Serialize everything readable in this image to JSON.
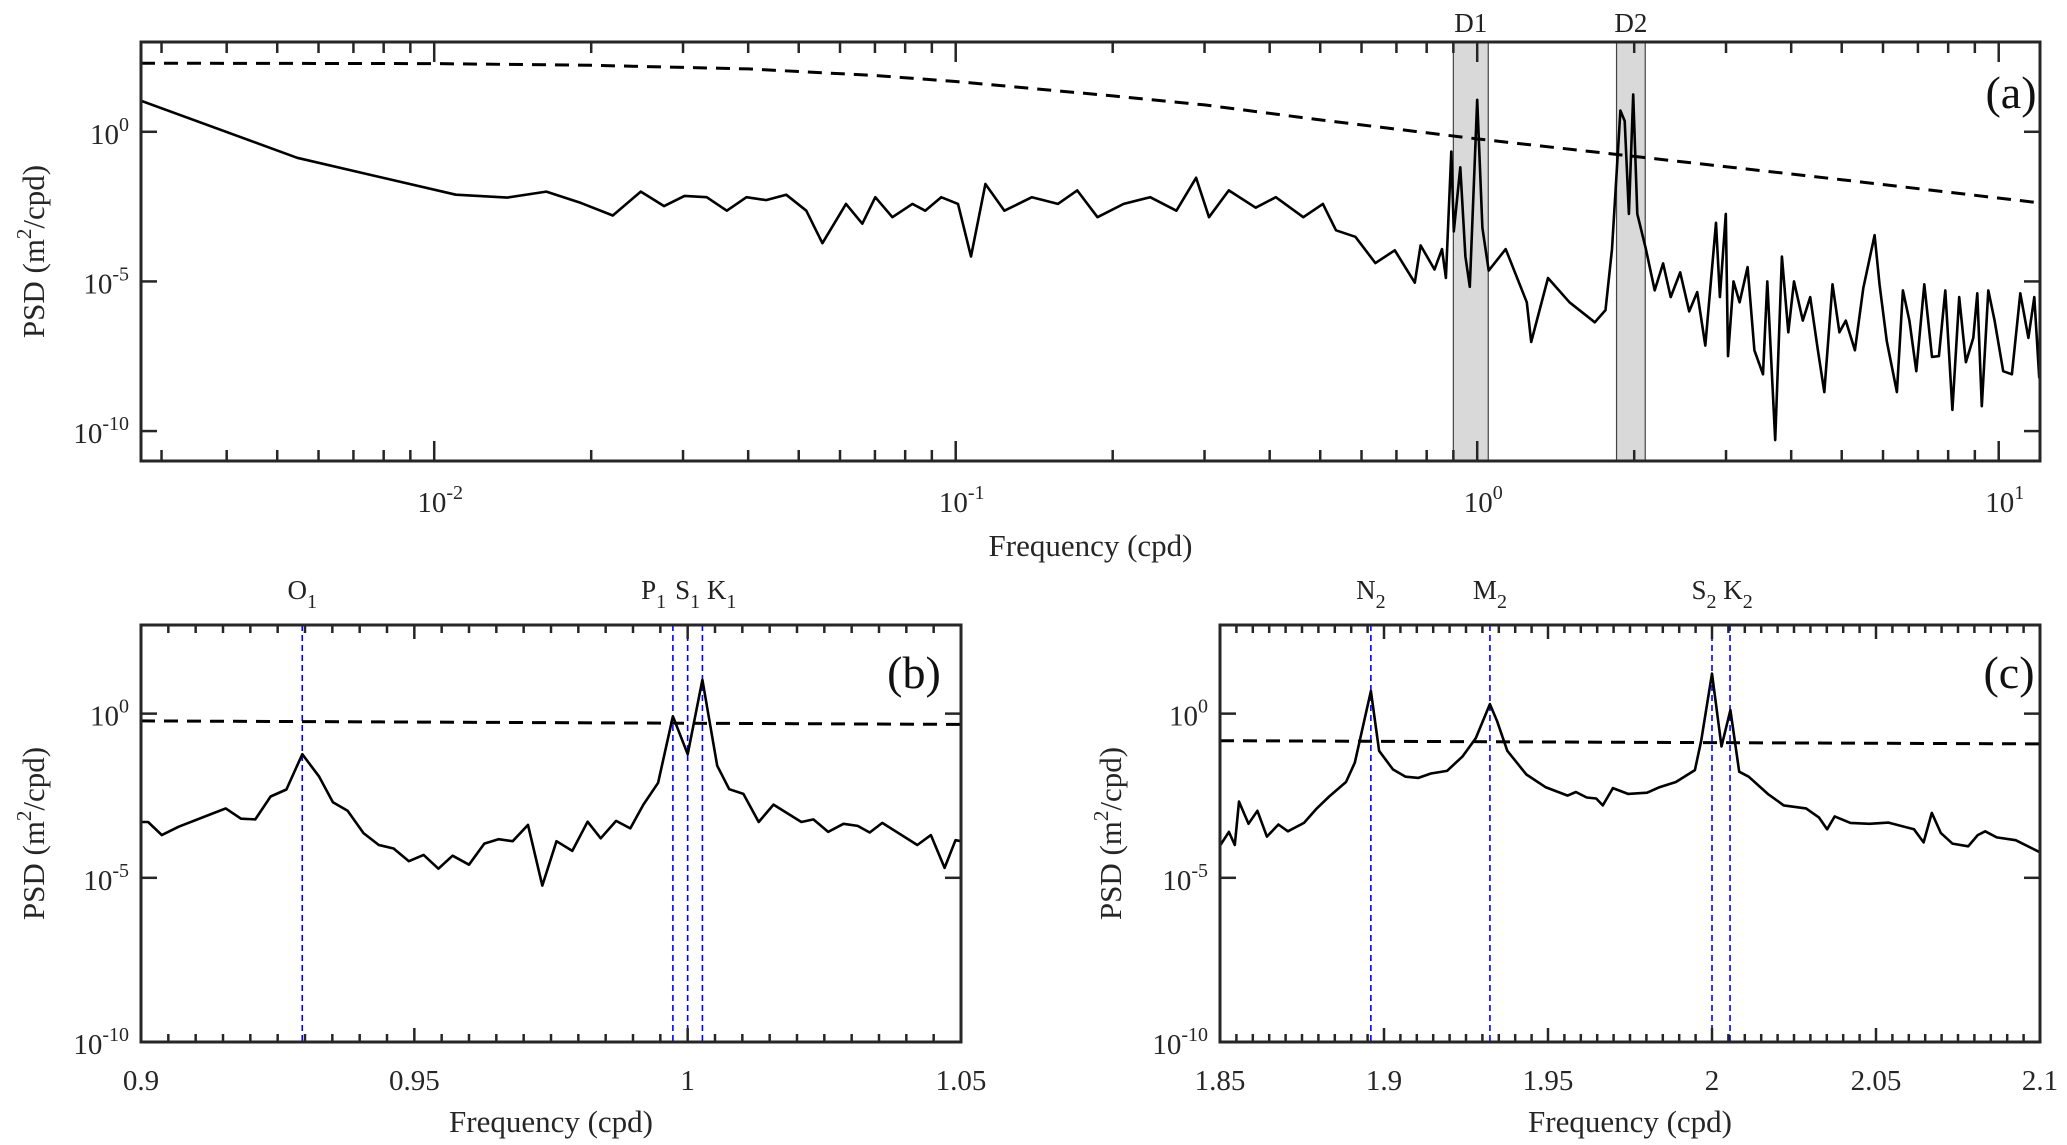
{
  "chart_data": [
    {
      "type": "line",
      "panel_label": "(a)",
      "xscale": "log",
      "yscale": "log",
      "xlim": [
        0.00274,
        12
      ],
      "ylim": [
        1e-11,
        1000
      ],
      "xlabel": "Frequency (cpd)",
      "ylabel": {
        "prefix": "PSD (m",
        "sup": "2",
        "suffix": "/cpd)"
      },
      "xticks": [
        0.01,
        0.1,
        1,
        10
      ],
      "xtick_labels": [
        {
          "base": "10",
          "exp": "-2"
        },
        {
          "base": "10",
          "exp": "-1"
        },
        {
          "base": "10",
          "exp": "0"
        },
        {
          "base": "10",
          "exp": "1"
        }
      ],
      "yticks": [
        1e-10,
        1e-05,
        1
      ],
      "ytick_labels": [
        {
          "base": "10",
          "exp": "-10"
        },
        {
          "base": "10",
          "exp": "-5"
        },
        {
          "base": "10",
          "exp": "0"
        }
      ],
      "grid": false,
      "bands": [
        {
          "label": "D1",
          "range": [
            0.9,
            1.05
          ]
        },
        {
          "label": "D2",
          "range": [
            1.85,
            2.1
          ]
        }
      ],
      "series": [
        {
          "style": "solid",
          "color": "#000000",
          "x": [
            0.00271,
            0.00546,
            0.011,
            0.0138,
            0.0164,
            0.0191,
            0.022,
            0.0249,
            0.0276,
            0.0302,
            0.0333,
            0.0364,
            0.0397,
            0.0433,
            0.0473,
            0.0517,
            0.0555,
            0.0616,
            0.0662,
            0.0701,
            0.0756,
            0.0826,
            0.0874,
            0.0938,
            0.101,
            0.107,
            0.114,
            0.124,
            0.14,
            0.157,
            0.171,
            0.187,
            0.21,
            0.236,
            0.265,
            0.289,
            0.306,
            0.334,
            0.376,
            0.411,
            0.464,
            0.506,
            0.536,
            0.584,
            0.638,
            0.695,
            0.759,
            0.779,
            0.828,
            0.856,
            0.871,
            0.892,
            0.902,
            0.928,
            0.949,
            0.968,
            1.0,
            1.023,
            1.052,
            1.134,
            1.245,
            1.269,
            1.367,
            1.503,
            1.681,
            1.762,
            1.813,
            1.882,
            1.918,
            1.954,
            1.991,
            2.028,
            2.106,
            2.19,
            2.272,
            2.35,
            2.45,
            2.55,
            2.641,
            2.738,
            2.87,
            2.92,
            2.997,
            3.026,
            3.1,
            3.185,
            3.3,
            3.4,
            3.532,
            3.6,
            3.727,
            3.84,
            3.95,
            4.05,
            4.21,
            4.35,
            4.5,
            4.63,
            4.8,
            4.95,
            5.09,
            5.3,
            5.5,
            5.78,
            5.91,
            6.1,
            6.38,
            6.55,
            6.74,
            6.95,
            7.2,
            7.45,
            7.68,
            7.9,
            8.15,
            8.4,
            8.65,
            8.94,
            9.1,
            9.28,
            9.55,
            9.82,
            10.2,
            10.6,
            11.0,
            11.4,
            11.7,
            11.96,
            12
          ],
          "y": [
            11.7,
            0.135,
            0.0079,
            0.0063,
            0.01,
            0.0042,
            0.0016,
            0.01,
            0.0033,
            0.0072,
            0.0065,
            0.0023,
            0.0065,
            0.0052,
            0.0079,
            0.0023,
            0.00019,
            0.0039,
            0.00085,
            0.0065,
            0.0014,
            0.0039,
            0.0023,
            0.0065,
            0.0039,
            6.8e-05,
            0.018,
            0.0023,
            0.0065,
            0.0039,
            0.011,
            0.0014,
            0.0039,
            0.0065,
            0.0023,
            0.029,
            0.0014,
            0.011,
            0.0029,
            0.0065,
            0.0014,
            0.0039,
            0.00051,
            0.00031,
            4.1e-05,
            0.00011,
            9.1e-06,
            0.00016,
            2.5e-05,
            0.00012,
            1.3e-05,
            0.22,
            0.00047,
            0.065,
            6.8e-05,
            6.6e-06,
            11.7,
            0.00062,
            2.3e-05,
            0.00012,
            2e-06,
            9.5e-08,
            1.3e-05,
            2e-06,
            4.3e-07,
            1.1e-06,
            0.00012,
            5.1,
            2.3,
            0.0018,
            17.8,
            0.0018,
            0.00012,
            5e-06,
            4e-05,
            3e-06,
            2e-05,
            1e-06,
            4.4e-06,
            7.2e-08,
            0.00091,
            3e-06,
            0.0018,
            3.2e-08,
            1e-05,
            2e-06,
            3e-05,
            5e-08,
            7.9e-09,
            1e-05,
            5e-11,
            6.8e-05,
            2e-07,
            1e-05,
            4.9e-07,
            3e-06,
            5e-08,
            2e-09,
            8e-06,
            2e-07,
            4.9e-07,
            5e-08,
            6e-06,
            0.00035,
            7.6e-06,
            1e-07,
            2e-09,
            5e-06,
            4.9e-07,
            1e-08,
            8e-06,
            3e-08,
            3.2e-08,
            5e-06,
            5.1e-10,
            3e-06,
            2e-08,
            1.3e-07,
            4e-06,
            6.8e-10,
            5e-06,
            4.9e-07,
            1e-08,
            7.9e-09,
            4e-06,
            1.3e-07,
            3e-06,
            6.2e-09,
            1e-06
          ]
        },
        {
          "style": "dashed",
          "color": "#000000",
          "x": [
            0.00274,
            0.01,
            0.02,
            0.04,
            0.07,
            0.1,
            0.2,
            0.3,
            0.5,
            1,
            2,
            5,
            12
          ],
          "y": [
            195,
            190,
            166,
            126,
            76,
            48,
            15.8,
            7.9,
            2.5,
            0.58,
            0.15,
            0.025,
            0.0042
          ]
        }
      ]
    },
    {
      "type": "line",
      "panel_label": "(b)",
      "xscale": "linear",
      "yscale": "log",
      "xlim": [
        0.9,
        1.05
      ],
      "ylim": [
        1e-10,
        500
      ],
      "xlabel": "Frequency (cpd)",
      "ylabel": {
        "prefix": "PSD (m",
        "sup": "2",
        "suffix": "/cpd)"
      },
      "xticks": [
        0.9,
        0.95,
        1,
        1.05
      ],
      "xtick_labels": [
        "0.9",
        "0.95",
        "1",
        "1.05"
      ],
      "xminor_step": 0.005,
      "yticks": [
        1e-10,
        1e-05,
        1
      ],
      "ytick_labels": [
        {
          "base": "10",
          "exp": "-10"
        },
        {
          "base": "10",
          "exp": "-5"
        },
        {
          "base": "10",
          "exp": "0"
        }
      ],
      "grid": false,
      "constituent_color": "#0000ff",
      "constituents": [
        {
          "name": "O",
          "sub": "1",
          "freq": 0.9295
        },
        {
          "name": "P",
          "sub": "1",
          "freq": 0.9973
        },
        {
          "name": "S",
          "sub": "1",
          "freq": 1.0
        },
        {
          "name": "K",
          "sub": "1",
          "freq": 1.0027
        }
      ],
      "series": [
        {
          "style": "solid",
          "color": "#000000",
          "x": [
            0.9,
            0.9013,
            0.9038,
            0.9069,
            0.9131,
            0.9155,
            0.9183,
            0.9209,
            0.9237,
            0.9266,
            0.9295,
            0.9326,
            0.9351,
            0.9378,
            0.9407,
            0.9435,
            0.9462,
            0.949,
            0.9517,
            0.9544,
            0.957,
            0.96,
            0.9628,
            0.9654,
            0.968,
            0.9708,
            0.9734,
            0.976,
            0.9789,
            0.9817,
            0.9841,
            0.9869,
            0.9895,
            0.9919,
            0.9946,
            0.9973,
            1.0,
            1.0027,
            1.0054,
            1.0076,
            1.0102,
            1.013,
            1.0157,
            1.0183,
            1.0208,
            1.023,
            1.0257,
            1.0285,
            1.0311,
            1.0333,
            1.0356,
            1.042,
            1.0445,
            1.047,
            1.049,
            1.05
          ],
          "y": [
            0.0005,
            0.0005,
            0.0002,
            0.00036,
            0.00091,
            0.0013,
            0.00063,
            0.0006,
            0.003,
            0.0049,
            0.058,
            0.012,
            0.002,
            0.0011,
            0.00023,
            0.0001,
            7.8e-05,
            3.2e-05,
            5e-05,
            1.9e-05,
            4.7e-05,
            2.5e-05,
            0.00011,
            0.00015,
            0.00013,
            0.00041,
            5.8e-06,
            0.00013,
            6.6e-05,
            0.00051,
            0.00016,
            0.00054,
            0.00032,
            0.0017,
            0.0078,
            0.83,
            0.058,
            10.7,
            0.026,
            0.005,
            0.0036,
            0.0005,
            0.0017,
            0.00091,
            0.0005,
            0.0006,
            0.00025,
            0.00044,
            0.00038,
            0.00024,
            0.00047,
            0.0001,
            0.0002,
            2e-05,
            0.00014,
            0.00013
          ]
        },
        {
          "style": "dashed",
          "color": "#000000",
          "x": [
            0.9,
            1.05
          ],
          "y": [
            0.6,
            0.47
          ]
        }
      ]
    },
    {
      "type": "line",
      "panel_label": "(c)",
      "xscale": "linear",
      "yscale": "log",
      "xlim": [
        1.85,
        2.1
      ],
      "ylim": [
        1e-10,
        500
      ],
      "xlabel": "Frequency (cpd)",
      "ylabel": {
        "prefix": "PSD (m",
        "sup": "2",
        "suffix": "/cpd)"
      },
      "xticks": [
        1.85,
        1.9,
        1.95,
        2,
        2.05,
        2.1
      ],
      "xtick_labels": [
        "1.85",
        "1.9",
        "1.95",
        "2",
        "2.05",
        "2.1"
      ],
      "xminor_step": 0.005,
      "yticks": [
        1e-10,
        1e-05,
        1
      ],
      "ytick_labels": [
        {
          "base": "10",
          "exp": "-10"
        },
        {
          "base": "10",
          "exp": "-5"
        },
        {
          "base": "10",
          "exp": "0"
        }
      ],
      "grid": false,
      "constituent_color": "#0000ff",
      "constituents": [
        {
          "name": "N",
          "sub": "2",
          "freq": 1.896
        },
        {
          "name": "M",
          "sub": "2",
          "freq": 1.9323
        },
        {
          "name": "S",
          "sub": "2",
          "freq": 2.0
        },
        {
          "name": "K",
          "sub": "2",
          "freq": 2.0055
        }
      ],
      "series": [
        {
          "style": "solid",
          "color": "#000000",
          "x": [
            1.85,
            1.8527,
            1.8545,
            1.8558,
            1.8587,
            1.8614,
            1.8643,
            1.8678,
            1.8707,
            1.8756,
            1.8795,
            1.8833,
            1.8884,
            1.8911,
            1.896,
            1.8985,
            1.9027,
            1.9066,
            1.9105,
            1.9143,
            1.9192,
            1.924,
            1.928,
            1.9323,
            1.9345,
            1.9376,
            1.9434,
            1.9492,
            1.956,
            1.9585,
            1.9618,
            1.9647,
            1.9667,
            1.9698,
            1.9744,
            1.9802,
            1.9841,
            1.989,
            1.9948,
            1.9967,
            2.0,
            2.0029,
            2.0056,
            2.0083,
            2.0112,
            2.017,
            2.0219,
            2.0287,
            2.0326,
            2.0351,
            2.0374,
            2.0422,
            2.048,
            2.0538,
            2.0616,
            2.0645,
            2.067,
            2.0698,
            2.0733,
            2.0781,
            2.081,
            2.0833,
            2.0868,
            2.0926,
            2.1
          ],
          "y": [
            9.5e-05,
            0.00025,
            0.0001,
            0.0021,
            0.00044,
            0.0011,
            0.00018,
            0.00042,
            0.00026,
            0.00047,
            0.0013,
            0.003,
            0.0083,
            0.032,
            4.9,
            0.074,
            0.02,
            0.012,
            0.011,
            0.015,
            0.018,
            0.05,
            0.18,
            1.95,
            0.58,
            0.074,
            0.014,
            0.0058,
            0.0032,
            0.0041,
            0.0028,
            0.0026,
            0.0016,
            0.0054,
            0.0036,
            0.0039,
            0.0058,
            0.0083,
            0.019,
            0.15,
            16.6,
            0.1,
            1.29,
            0.017,
            0.012,
            0.0036,
            0.0016,
            0.0013,
            0.00069,
            0.0003,
            0.00074,
            0.00047,
            0.00044,
            0.00048,
            0.0003,
            0.00012,
            0.00095,
            0.00023,
            0.00011,
            9.1e-05,
            0.0002,
            0.00026,
            0.00017,
            0.00014,
            6e-05
          ]
        },
        {
          "style": "dashed",
          "color": "#000000",
          "x": [
            1.85,
            2.1
          ],
          "y": [
            0.15,
            0.12
          ]
        }
      ]
    }
  ]
}
